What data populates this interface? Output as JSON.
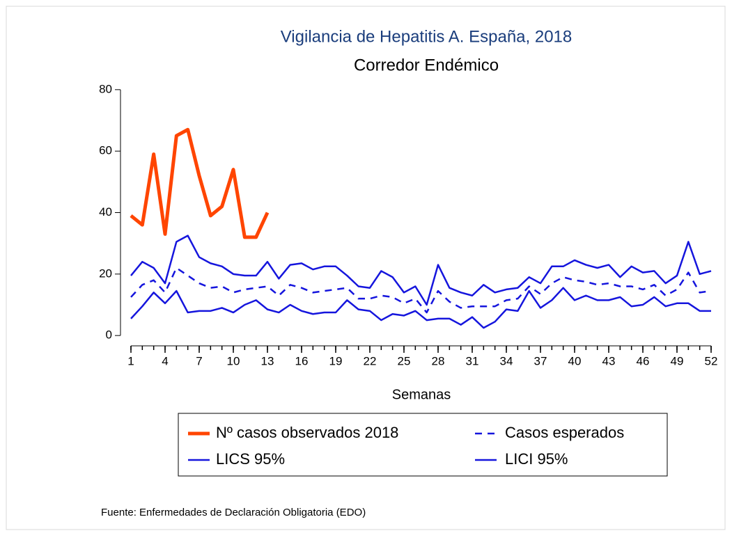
{
  "chart_data": {
    "type": "line",
    "title": "Vigilancia de Hepatitis A. España, 2018",
    "subtitle": "Corredor Endémico",
    "x_label": "Semanas",
    "source": "Fuente: Enfermedades de Declaración Obligatoria (EDO)",
    "x": [
      1,
      2,
      3,
      4,
      5,
      6,
      7,
      8,
      9,
      10,
      11,
      12,
      13,
      14,
      15,
      16,
      17,
      18,
      19,
      20,
      21,
      22,
      23,
      24,
      25,
      26,
      27,
      28,
      29,
      30,
      31,
      32,
      33,
      34,
      35,
      36,
      37,
      38,
      39,
      40,
      41,
      42,
      43,
      44,
      45,
      46,
      47,
      48,
      49,
      50,
      51,
      52
    ],
    "xlim": [
      1,
      52
    ],
    "xticks": [
      1,
      4,
      7,
      10,
      13,
      16,
      19,
      22,
      25,
      28,
      31,
      34,
      37,
      40,
      43,
      46,
      49,
      52
    ],
    "ylim": [
      -2,
      82
    ],
    "yticks": [
      0,
      20,
      40,
      60,
      80
    ],
    "series": [
      {
        "name": "Nº casos observados 2018",
        "color": "#ff4500",
        "dash": "solid",
        "values": [
          39,
          36,
          59,
          33,
          65,
          67,
          52,
          39,
          42,
          54,
          32,
          32,
          40,
          null,
          null,
          null,
          null,
          null,
          null,
          null,
          null,
          null,
          null,
          null,
          null,
          null,
          null,
          null,
          null,
          null,
          null,
          null,
          null,
          null,
          null,
          null,
          null,
          null,
          null,
          null,
          null,
          null,
          null,
          null,
          null,
          null,
          null,
          null,
          null,
          null,
          null,
          null
        ]
      },
      {
        "name": "Casos esperados",
        "color": "#1515dd",
        "dash": "dashed",
        "values": [
          12.5,
          16.5,
          18,
          14,
          22,
          19.5,
          17,
          15.5,
          16,
          14,
          15,
          15.5,
          16,
          13,
          16.5,
          15.5,
          14,
          14.5,
          15,
          15.5,
          12,
          12,
          13,
          12.5,
          10.5,
          12,
          7.5,
          14.5,
          11,
          9,
          9.5,
          9.5,
          9.5,
          11.5,
          12,
          16,
          13.5,
          17,
          19,
          18,
          17.5,
          16.5,
          17,
          16,
          16,
          15,
          16.5,
          13,
          15,
          20.5,
          14,
          14.5
        ]
      },
      {
        "name": "LICS 95%",
        "color": "#1515dd",
        "dash": "solid",
        "values": [
          19.5,
          24,
          22,
          17,
          30.5,
          32.5,
          25.5,
          23.5,
          22.5,
          20,
          19.5,
          19.5,
          24,
          18.5,
          23,
          23.5,
          21.5,
          22.5,
          22.5,
          19.5,
          16,
          15.5,
          21,
          19,
          14,
          16,
          10,
          23,
          15.5,
          14,
          13,
          16.5,
          14,
          15,
          15.5,
          19,
          17,
          22.5,
          22.5,
          24.5,
          23,
          22,
          23,
          19,
          22.5,
          20.5,
          21,
          17,
          19.5,
          30.5,
          20,
          21
        ]
      },
      {
        "name": "LICI 95%",
        "color": "#1515dd",
        "dash": "solid",
        "values": [
          5.5,
          9.5,
          14,
          10.5,
          14.5,
          7.5,
          8,
          8,
          9,
          7.5,
          10,
          11.5,
          8.5,
          7.5,
          10,
          8,
          7,
          7.5,
          7.5,
          11.5,
          8.5,
          8,
          5,
          7,
          6.5,
          8,
          5,
          5.5,
          5.5,
          3.5,
          6,
          2.5,
          4.5,
          8.5,
          8,
          14.5,
          9,
          11.5,
          15.5,
          11.5,
          13,
          11.5,
          11.5,
          12.5,
          9.5,
          10,
          12.5,
          9.5,
          10.5,
          10.5,
          8,
          8
        ]
      }
    ]
  }
}
